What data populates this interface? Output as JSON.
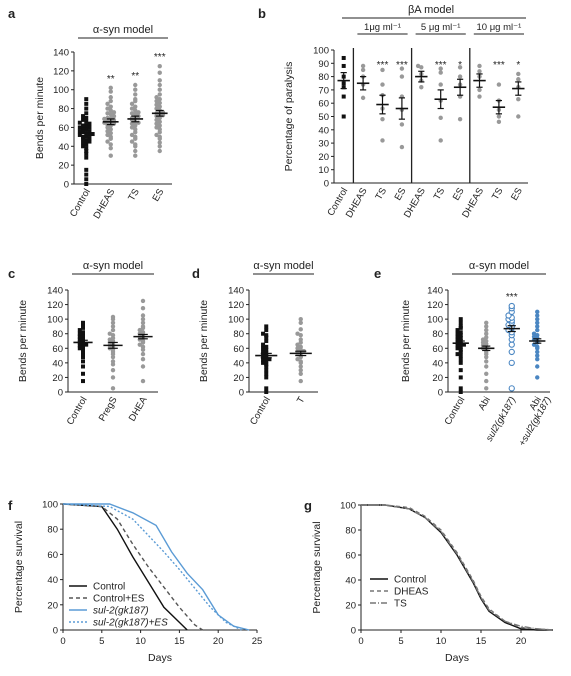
{
  "chart_data": [
    {
      "panel": "a",
      "type": "scatter",
      "header": "α-syn model",
      "ylabel": "Bends per minute",
      "ylim": [
        0,
        140
      ],
      "yticks": [
        0,
        20,
        40,
        60,
        80,
        100,
        120,
        140
      ],
      "categories": [
        "Control",
        "DHEAS",
        "TS",
        "ES"
      ],
      "significance": [
        "",
        "**",
        "**",
        "***"
      ],
      "means": [
        54,
        66,
        69,
        75
      ],
      "sems": [
        3,
        3,
        3,
        3
      ],
      "series": [
        {
          "values": [
            0,
            5,
            10,
            15,
            28,
            32,
            35,
            38,
            40,
            42,
            44,
            45,
            46,
            48,
            48,
            50,
            50,
            52,
            52,
            53,
            54,
            55,
            56,
            56,
            58,
            58,
            60,
            60,
            62,
            62,
            64,
            65,
            66,
            68,
            70,
            72,
            75,
            80,
            85,
            90
          ]
        },
        {
          "values": [
            30,
            38,
            42,
            45,
            48,
            50,
            52,
            54,
            56,
            58,
            60,
            62,
            63,
            64,
            65,
            66,
            67,
            68,
            69,
            70,
            70,
            72,
            74,
            75,
            76,
            78,
            80,
            82,
            85,
            88,
            92,
            98,
            102
          ]
        },
        {
          "values": [
            30,
            35,
            40,
            42,
            45,
            48,
            50,
            52,
            55,
            58,
            60,
            62,
            64,
            65,
            66,
            68,
            70,
            70,
            72,
            74,
            75,
            76,
            78,
            80,
            82,
            85,
            88,
            90,
            95,
            100,
            105
          ]
        },
        {
          "values": [
            35,
            40,
            44,
            48,
            50,
            52,
            55,
            58,
            60,
            62,
            64,
            66,
            68,
            70,
            72,
            73,
            74,
            75,
            76,
            78,
            80,
            82,
            84,
            86,
            88,
            90,
            92,
            95,
            100,
            105,
            110,
            118,
            125
          ]
        }
      ]
    },
    {
      "panel": "b",
      "type": "scatter",
      "header": "βA model",
      "ylabel": "Percentage of paralysis",
      "ylim": [
        0,
        100
      ],
      "yticks": [
        0,
        10,
        20,
        30,
        40,
        50,
        60,
        70,
        80,
        90,
        100
      ],
      "groups": [
        "1μg ml⁻¹",
        "5 μg ml⁻¹",
        "10 μg ml⁻¹"
      ],
      "categories": [
        "Control",
        "DHEAS",
        "TS",
        "ES",
        "DHEAS",
        "TS",
        "ES",
        "DHEAS",
        "TS",
        "ES"
      ],
      "significance": [
        "",
        "",
        "***",
        "***",
        "",
        "***",
        "*",
        "",
        "***",
        "*"
      ],
      "means": [
        77,
        75,
        59,
        56,
        80,
        63,
        72,
        77,
        57,
        71
      ],
      "sems": [
        6,
        5,
        7,
        8,
        4,
        7,
        6,
        5,
        5,
        5
      ],
      "series": [
        {
          "values": [
            50,
            65,
            72,
            75,
            80,
            88,
            94
          ]
        },
        {
          "values": [
            64,
            74,
            80,
            85,
            88
          ]
        },
        {
          "values": [
            32,
            48,
            56,
            66,
            74,
            85
          ]
        },
        {
          "values": [
            27,
            44,
            55,
            65,
            80,
            86
          ]
        },
        {
          "values": [
            72,
            77,
            82,
            87,
            88
          ]
        },
        {
          "values": [
            32,
            49,
            62,
            74,
            83,
            86
          ]
        },
        {
          "values": [
            48,
            65,
            74,
            80,
            87
          ]
        },
        {
          "values": [
            65,
            70,
            80,
            84,
            88
          ]
        },
        {
          "values": [
            46,
            50,
            55,
            62,
            74
          ]
        },
        {
          "values": [
            50,
            63,
            72,
            78,
            82
          ]
        }
      ]
    },
    {
      "panel": "c",
      "type": "scatter",
      "header": "α-syn model",
      "ylabel": "Bends per minute",
      "ylim": [
        0,
        140
      ],
      "yticks": [
        0,
        20,
        40,
        60,
        80,
        100,
        120,
        140
      ],
      "categories": [
        "Control",
        "PregS",
        "DHEA"
      ],
      "means": [
        68,
        64,
        76
      ],
      "sems": [
        3,
        4,
        3
      ],
      "series": [
        {
          "values": [
            15,
            25,
            35,
            42,
            48,
            52,
            55,
            58,
            60,
            62,
            64,
            65,
            66,
            68,
            70,
            72,
            74,
            76,
            78,
            80,
            82,
            85,
            88,
            90,
            95
          ]
        },
        {
          "values": [
            5,
            20,
            30,
            38,
            42,
            48,
            52,
            55,
            58,
            60,
            62,
            64,
            66,
            68,
            70,
            72,
            74,
            78,
            80,
            85,
            90,
            95,
            100,
            103
          ]
        },
        {
          "values": [
            15,
            35,
            45,
            52,
            58,
            62,
            65,
            68,
            70,
            72,
            74,
            76,
            78,
            80,
            82,
            85,
            88,
            90,
            95,
            100,
            105,
            115,
            125
          ]
        }
      ]
    },
    {
      "panel": "d",
      "type": "scatter",
      "header": "α-syn model",
      "ylabel": "Bends per minute",
      "ylim": [
        0,
        140
      ],
      "yticks": [
        0,
        20,
        40,
        60,
        80,
        100,
        120,
        140
      ],
      "categories": [
        "Control",
        "T"
      ],
      "means": [
        50,
        53
      ],
      "sems": [
        3,
        3
      ],
      "series": [
        {
          "values": [
            0,
            5,
            20,
            25,
            30,
            35,
            38,
            40,
            42,
            44,
            45,
            46,
            48,
            50,
            52,
            54,
            55,
            58,
            60,
            62,
            65,
            70,
            75,
            78,
            80,
            85,
            90
          ]
        },
        {
          "values": [
            15,
            25,
            30,
            35,
            40,
            42,
            45,
            48,
            50,
            52,
            54,
            55,
            56,
            58,
            60,
            62,
            65,
            68,
            72,
            78,
            80,
            86,
            95,
            100
          ]
        }
      ]
    },
    {
      "panel": "e",
      "type": "scatter",
      "header": "α-syn model",
      "ylabel": "Bends per minute",
      "ylim": [
        0,
        140
      ],
      "yticks": [
        0,
        20,
        40,
        60,
        80,
        100,
        120,
        140
      ],
      "categories": [
        "Control",
        "Abi",
        "sul2(gk187)",
        "Abi\n+sul2(gk187)"
      ],
      "significance": [
        "",
        "",
        "***",
        ""
      ],
      "means": [
        67,
        60,
        87,
        70
      ],
      "sems": [
        3,
        3,
        4,
        3
      ],
      "colors": [
        "#111111",
        "#9a9a9a",
        "#4a86c2",
        "#4a86c2"
      ],
      "series": [
        {
          "values": [
            0,
            5,
            20,
            30,
            40,
            45,
            50,
            52,
            55,
            58,
            60,
            62,
            64,
            65,
            66,
            68,
            70,
            72,
            74,
            76,
            78,
            80,
            82,
            85,
            88,
            90,
            95,
            100
          ]
        },
        {
          "values": [
            5,
            15,
            25,
            35,
            42,
            48,
            52,
            55,
            58,
            60,
            62,
            64,
            66,
            68,
            70,
            72,
            75,
            80,
            85,
            90,
            95
          ]
        },
        {
          "values": [
            5,
            40,
            55,
            65,
            72,
            78,
            82,
            85,
            88,
            90,
            92,
            95,
            98,
            100,
            102,
            105,
            110,
            115,
            118
          ]
        },
        {
          "values": [
            20,
            35,
            45,
            50,
            55,
            60,
            62,
            65,
            68,
            70,
            72,
            74,
            76,
            78,
            80,
            85,
            90,
            95,
            100,
            105,
            110
          ]
        }
      ]
    },
    {
      "panel": "f",
      "type": "line",
      "xlabel": "Days",
      "ylabel": "Percentage survival",
      "xlim": [
        0,
        25
      ],
      "ylim": [
        0,
        100
      ],
      "xticks": [
        0,
        5,
        10,
        15,
        20,
        25
      ],
      "yticks": [
        0,
        20,
        40,
        60,
        80,
        100
      ],
      "legend_position": "bottom-left",
      "series": [
        {
          "name": "Control",
          "color": "#111111",
          "dash": "solid",
          "x": [
            0,
            5,
            7,
            9,
            11,
            13,
            15,
            16
          ],
          "y": [
            100,
            98,
            80,
            58,
            38,
            18,
            6,
            0
          ]
        },
        {
          "name": "Control+ES",
          "color": "#555555",
          "dash": "dashed",
          "x": [
            0,
            5,
            7,
            9,
            11,
            13,
            15,
            17,
            18
          ],
          "y": [
            100,
            98,
            88,
            68,
            50,
            34,
            18,
            4,
            0
          ]
        },
        {
          "name": "sul-2(gk187)",
          "color": "#5b9bd5",
          "dash": "solid",
          "italic": true,
          "x": [
            0,
            6,
            9,
            12,
            14,
            16,
            18,
            20,
            22,
            24
          ],
          "y": [
            100,
            100,
            93,
            83,
            62,
            45,
            32,
            12,
            3,
            0
          ]
        },
        {
          "name": "sul-2(gk187)+ES",
          "color": "#5b9bd5",
          "dash": "dotted",
          "italic": true,
          "x": [
            0,
            6,
            9,
            11,
            13,
            15,
            17,
            19,
            21,
            23
          ],
          "y": [
            100,
            98,
            88,
            75,
            62,
            48,
            33,
            18,
            6,
            0
          ]
        }
      ]
    },
    {
      "panel": "g",
      "type": "line",
      "xlabel": "Days",
      "ylabel": "Percentage survival",
      "xlim": [
        0,
        24
      ],
      "ylim": [
        0,
        100
      ],
      "xticks": [
        0,
        5,
        10,
        15,
        20
      ],
      "yticks": [
        0,
        20,
        40,
        60,
        80,
        100
      ],
      "legend_position": "bottom-left",
      "series": [
        {
          "name": "Control",
          "color": "#111111",
          "dash": "solid",
          "x": [
            0,
            3,
            6,
            8,
            10,
            12,
            14,
            15,
            16,
            18,
            20,
            22,
            24
          ],
          "y": [
            100,
            100,
            97,
            90,
            78,
            60,
            38,
            25,
            15,
            6,
            1,
            0,
            0
          ]
        },
        {
          "name": "DHEAS",
          "color": "#777777",
          "dash": "dashed",
          "x": [
            0,
            3,
            6,
            8,
            10,
            12,
            14,
            15,
            16,
            18,
            20,
            22,
            24
          ],
          "y": [
            100,
            100,
            98,
            91,
            80,
            62,
            40,
            27,
            17,
            7,
            2,
            1,
            0
          ]
        },
        {
          "name": "TS",
          "color": "#777777",
          "dash": "dashdot",
          "x": [
            0,
            3,
            6,
            8,
            10,
            12,
            14,
            15,
            16,
            18,
            20,
            22,
            24
          ],
          "y": [
            100,
            100,
            97,
            90,
            79,
            61,
            39,
            26,
            16,
            7,
            3,
            1,
            0
          ]
        }
      ]
    }
  ]
}
